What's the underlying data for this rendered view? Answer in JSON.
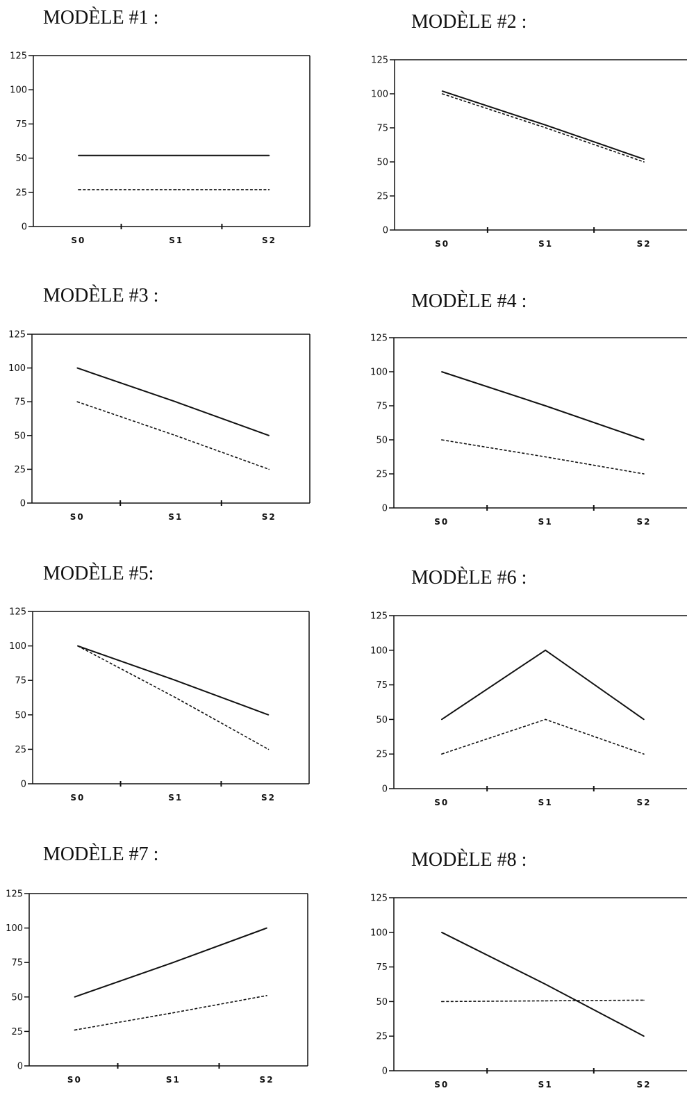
{
  "chart_data": [
    {
      "type": "line",
      "title": "MODÈLE #1 :",
      "categories": [
        "S0",
        "S1",
        "S2"
      ],
      "y_ticks": [
        0,
        25,
        50,
        75,
        100,
        125
      ],
      "ylim": [
        0,
        125
      ],
      "series": [
        {
          "style": "solid",
          "values": [
            52,
            52,
            52
          ]
        },
        {
          "style": "dashed",
          "values": [
            27,
            27,
            27
          ]
        }
      ]
    },
    {
      "type": "line",
      "title": "MODÈLE #2 :",
      "categories": [
        "S0",
        "S1",
        "S2"
      ],
      "y_ticks": [
        0,
        25,
        50,
        75,
        100,
        125
      ],
      "ylim": [
        0,
        125
      ],
      "series": [
        {
          "style": "solid",
          "values": [
            102,
            77,
            52
          ]
        },
        {
          "style": "dashed",
          "values": [
            100,
            75,
            50
          ]
        }
      ]
    },
    {
      "type": "line",
      "title": "MODÈLE  #3 :",
      "categories": [
        "S0",
        "S1",
        "S2"
      ],
      "y_ticks": [
        0,
        25,
        50,
        75,
        100,
        125
      ],
      "ylim": [
        0,
        125
      ],
      "series": [
        {
          "style": "solid",
          "values": [
            100,
            75,
            50
          ]
        },
        {
          "style": "dashed",
          "values": [
            75,
            50,
            25
          ]
        }
      ]
    },
    {
      "type": "line",
      "title": "MODÈLE #4 :",
      "categories": [
        "S0",
        "S1",
        "S2"
      ],
      "y_ticks": [
        0,
        25,
        50,
        75,
        100,
        125
      ],
      "ylim": [
        0,
        125
      ],
      "series": [
        {
          "style": "solid",
          "values": [
            100,
            75,
            50
          ]
        },
        {
          "style": "dashed",
          "values": [
            50,
            37.5,
            25
          ]
        }
      ]
    },
    {
      "type": "line",
      "title": "MODÈLE #5:",
      "categories": [
        "S0",
        "S1",
        "S2"
      ],
      "y_ticks": [
        0,
        25,
        50,
        75,
        100,
        125
      ],
      "ylim": [
        0,
        125
      ],
      "series": [
        {
          "style": "solid",
          "values": [
            100,
            75,
            50
          ]
        },
        {
          "style": "dashed",
          "values": [
            100,
            62.5,
            25
          ]
        }
      ]
    },
    {
      "type": "line",
      "title": "MODÈLE #6 :",
      "categories": [
        "S0",
        "S1",
        "S2"
      ],
      "y_ticks": [
        0,
        25,
        50,
        75,
        100,
        125
      ],
      "ylim": [
        0,
        125
      ],
      "series": [
        {
          "style": "solid",
          "values": [
            50,
            100,
            50
          ]
        },
        {
          "style": "dashed",
          "values": [
            25,
            50,
            25
          ]
        }
      ]
    },
    {
      "type": "line",
      "title": "MODÈLE #7 :",
      "categories": [
        "S0",
        "S1",
        "S2"
      ],
      "y_ticks": [
        0,
        25,
        50,
        75,
        100,
        125
      ],
      "ylim": [
        0,
        125
      ],
      "series": [
        {
          "style": "solid",
          "values": [
            50,
            75,
            100
          ]
        },
        {
          "style": "dashed",
          "values": [
            26,
            38.5,
            51
          ]
        }
      ]
    },
    {
      "type": "line",
      "title": "MODÈLE #8 :",
      "categories": [
        "S0",
        "S1",
        "S2"
      ],
      "y_ticks": [
        0,
        25,
        50,
        75,
        100,
        125
      ],
      "ylim": [
        0,
        125
      ],
      "series": [
        {
          "style": "solid",
          "values": [
            100,
            62.5,
            25
          ]
        },
        {
          "style": "dashed",
          "values": [
            50,
            50.5,
            51
          ]
        }
      ]
    }
  ]
}
